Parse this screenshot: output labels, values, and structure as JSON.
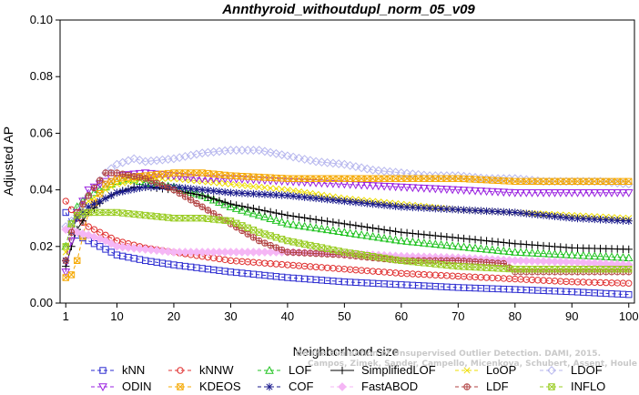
{
  "chart_data": {
    "type": "line",
    "title": "Annthyroid_withoutdupl_norm_05_v09",
    "xlabel": "Neighborhood size",
    "ylabel": "Adjusted AP",
    "xlim": [
      0,
      101
    ],
    "ylim": [
      0,
      0.1
    ],
    "xticks": [
      1,
      10,
      20,
      30,
      40,
      50,
      60,
      70,
      80,
      90,
      100
    ],
    "yticks": [
      "0.00",
      "0.02",
      "0.04",
      "0.06",
      "0.08",
      "0.10"
    ],
    "grid": false,
    "legend_position": "bottom",
    "series": [
      {
        "name": "kNN",
        "color": "#2b2bd0",
        "marker": "square",
        "dash": "4,3",
        "points": [
          [
            1,
            0.032
          ],
          [
            2,
            0.028
          ],
          [
            3,
            0.024
          ],
          [
            5,
            0.022
          ],
          [
            8,
            0.019
          ],
          [
            10,
            0.017
          ],
          [
            15,
            0.015
          ],
          [
            20,
            0.0135
          ],
          [
            30,
            0.011
          ],
          [
            40,
            0.009
          ],
          [
            50,
            0.0075
          ],
          [
            60,
            0.0065
          ],
          [
            70,
            0.0055
          ],
          [
            80,
            0.0048
          ],
          [
            90,
            0.004
          ],
          [
            100,
            0.003
          ]
        ]
      },
      {
        "name": "kNNW",
        "color": "#e03030",
        "marker": "circle",
        "dash": "4,3",
        "points": [
          [
            1,
            0.036
          ],
          [
            2,
            0.033
          ],
          [
            3,
            0.03
          ],
          [
            5,
            0.027
          ],
          [
            8,
            0.024
          ],
          [
            10,
            0.022
          ],
          [
            15,
            0.0195
          ],
          [
            20,
            0.018
          ],
          [
            30,
            0.015
          ],
          [
            40,
            0.0135
          ],
          [
            50,
            0.012
          ],
          [
            60,
            0.0105
          ],
          [
            70,
            0.0095
          ],
          [
            80,
            0.0085
          ],
          [
            90,
            0.0075
          ],
          [
            100,
            0.007
          ]
        ]
      },
      {
        "name": "LOF",
        "color": "#22c322",
        "marker": "triangle",
        "dash": "4,3",
        "points": [
          [
            1,
            0.02
          ],
          [
            2,
            0.028
          ],
          [
            3,
            0.034
          ],
          [
            5,
            0.038
          ],
          [
            8,
            0.041
          ],
          [
            10,
            0.043
          ],
          [
            12,
            0.044
          ],
          [
            15,
            0.0425
          ],
          [
            20,
            0.041
          ],
          [
            25,
            0.038
          ],
          [
            30,
            0.034
          ],
          [
            35,
            0.031
          ],
          [
            40,
            0.028
          ],
          [
            50,
            0.025
          ],
          [
            60,
            0.022
          ],
          [
            70,
            0.02
          ],
          [
            80,
            0.018
          ],
          [
            90,
            0.017
          ],
          [
            100,
            0.016
          ]
        ]
      },
      {
        "name": "SimplifiedLOF",
        "color": "#000000",
        "marker": "plus",
        "dash": "",
        "points": [
          [
            1,
            0.013
          ],
          [
            2,
            0.02
          ],
          [
            3,
            0.026
          ],
          [
            5,
            0.032
          ],
          [
            8,
            0.037
          ],
          [
            10,
            0.039
          ],
          [
            13,
            0.041
          ],
          [
            15,
            0.041
          ],
          [
            20,
            0.04
          ],
          [
            25,
            0.038
          ],
          [
            30,
            0.035
          ],
          [
            35,
            0.033
          ],
          [
            40,
            0.031
          ],
          [
            50,
            0.028
          ],
          [
            60,
            0.025
          ],
          [
            70,
            0.023
          ],
          [
            80,
            0.021
          ],
          [
            90,
            0.0195
          ],
          [
            100,
            0.019
          ]
        ]
      },
      {
        "name": "LoOP",
        "color": "#eedd00",
        "marker": "x",
        "dash": "4,3",
        "points": [
          [
            1,
            0.018
          ],
          [
            2,
            0.025
          ],
          [
            3,
            0.031
          ],
          [
            5,
            0.036
          ],
          [
            8,
            0.04
          ],
          [
            10,
            0.042
          ],
          [
            15,
            0.044
          ],
          [
            20,
            0.044
          ],
          [
            30,
            0.042
          ],
          [
            40,
            0.04
          ],
          [
            50,
            0.037
          ],
          [
            60,
            0.035
          ],
          [
            70,
            0.033
          ],
          [
            80,
            0.032
          ],
          [
            90,
            0.031
          ],
          [
            100,
            0.03
          ]
        ]
      },
      {
        "name": "LDOF",
        "color": "#b7b7ee",
        "marker": "diamond",
        "dash": "4,3",
        "points": [
          [
            1,
            0.027
          ],
          [
            3,
            0.031
          ],
          [
            5,
            0.038
          ],
          [
            8,
            0.046
          ],
          [
            10,
            0.049
          ],
          [
            13,
            0.051
          ],
          [
            15,
            0.05
          ],
          [
            20,
            0.051
          ],
          [
            25,
            0.053
          ],
          [
            30,
            0.054
          ],
          [
            35,
            0.054
          ],
          [
            40,
            0.052
          ],
          [
            45,
            0.05
          ],
          [
            50,
            0.049
          ],
          [
            55,
            0.047
          ],
          [
            60,
            0.046
          ],
          [
            65,
            0.045
          ],
          [
            70,
            0.045
          ],
          [
            75,
            0.044
          ],
          [
            80,
            0.044
          ],
          [
            85,
            0.043
          ],
          [
            90,
            0.043
          ],
          [
            95,
            0.043
          ],
          [
            100,
            0.042
          ]
        ]
      },
      {
        "name": "ODIN",
        "color": "#9a22e0",
        "marker": "triangle-down",
        "dash": "4,3",
        "points": [
          [
            1,
            0.011
          ],
          [
            2,
            0.022
          ],
          [
            3,
            0.032
          ],
          [
            5,
            0.04
          ],
          [
            8,
            0.043
          ],
          [
            10,
            0.045
          ],
          [
            15,
            0.046
          ],
          [
            20,
            0.045
          ],
          [
            25,
            0.044
          ],
          [
            30,
            0.044
          ],
          [
            40,
            0.043
          ],
          [
            50,
            0.042
          ],
          [
            60,
            0.041
          ],
          [
            70,
            0.04
          ],
          [
            80,
            0.039
          ],
          [
            90,
            0.039
          ],
          [
            100,
            0.039
          ]
        ]
      },
      {
        "name": "KDEOS",
        "color": "#f5a800",
        "marker": "square-x",
        "dash": "4,3",
        "points": [
          [
            1,
            0.009
          ],
          [
            2,
            0.01
          ],
          [
            3,
            0.015
          ],
          [
            5,
            0.032
          ],
          [
            8,
            0.042
          ],
          [
            10,
            0.044
          ],
          [
            15,
            0.045
          ],
          [
            20,
            0.046
          ],
          [
            25,
            0.046
          ],
          [
            30,
            0.045
          ],
          [
            40,
            0.044
          ],
          [
            50,
            0.044
          ],
          [
            60,
            0.044
          ],
          [
            70,
            0.044
          ],
          [
            80,
            0.043
          ],
          [
            90,
            0.043
          ],
          [
            100,
            0.043
          ]
        ]
      },
      {
        "name": "COF",
        "color": "#1a1a8c",
        "marker": "star",
        "dash": "4,3",
        "points": [
          [
            1,
            0.015
          ],
          [
            2,
            0.025
          ],
          [
            3,
            0.03
          ],
          [
            5,
            0.034
          ],
          [
            8,
            0.037
          ],
          [
            10,
            0.039
          ],
          [
            15,
            0.041
          ],
          [
            20,
            0.041
          ],
          [
            25,
            0.04
          ],
          [
            30,
            0.039
          ],
          [
            40,
            0.038
          ],
          [
            50,
            0.036
          ],
          [
            60,
            0.034
          ],
          [
            70,
            0.033
          ],
          [
            80,
            0.032
          ],
          [
            90,
            0.03
          ],
          [
            100,
            0.029
          ]
        ]
      },
      {
        "name": "FastABOD",
        "color": "#f5b6f5",
        "marker": "diamond-filled",
        "dash": "4,3",
        "points": [
          [
            1,
            0.026
          ],
          [
            2,
            0.026
          ],
          [
            3,
            0.025
          ],
          [
            5,
            0.024
          ],
          [
            8,
            0.022
          ],
          [
            10,
            0.02
          ],
          [
            15,
            0.019
          ],
          [
            20,
            0.018
          ],
          [
            30,
            0.018
          ],
          [
            40,
            0.018
          ],
          [
            50,
            0.0175
          ],
          [
            60,
            0.0165
          ],
          [
            70,
            0.016
          ],
          [
            80,
            0.015
          ],
          [
            90,
            0.0145
          ],
          [
            100,
            0.0135
          ]
        ]
      },
      {
        "name": "LDF",
        "color": "#b04040",
        "marker": "circle-plus",
        "dash": "4,3",
        "points": [
          [
            1,
            0.015
          ],
          [
            2,
            0.025
          ],
          [
            3,
            0.032
          ],
          [
            5,
            0.038
          ],
          [
            8,
            0.046
          ],
          [
            10,
            0.046
          ],
          [
            15,
            0.044
          ],
          [
            20,
            0.04
          ],
          [
            25,
            0.034
          ],
          [
            30,
            0.028
          ],
          [
            35,
            0.022
          ],
          [
            40,
            0.018
          ],
          [
            50,
            0.017
          ],
          [
            60,
            0.015
          ],
          [
            70,
            0.015
          ],
          [
            78,
            0.014
          ],
          [
            80,
            0.011
          ],
          [
            90,
            0.011
          ],
          [
            100,
            0.011
          ]
        ]
      },
      {
        "name": "INFLO",
        "color": "#99cc22",
        "marker": "square-x",
        "dash": "4,3",
        "points": [
          [
            1,
            0.02
          ],
          [
            2,
            0.028
          ],
          [
            3,
            0.031
          ],
          [
            5,
            0.032
          ],
          [
            8,
            0.032
          ],
          [
            10,
            0.032
          ],
          [
            15,
            0.031
          ],
          [
            20,
            0.03
          ],
          [
            25,
            0.03
          ],
          [
            30,
            0.029
          ],
          [
            35,
            0.025
          ],
          [
            40,
            0.022
          ],
          [
            50,
            0.018
          ],
          [
            60,
            0.015
          ],
          [
            70,
            0.013
          ],
          [
            80,
            0.012
          ],
          [
            90,
            0.012
          ],
          [
            100,
            0.012
          ]
        ]
      }
    ]
  },
  "watermark": [
    "Campos, Zimek, Sander, Campello, Micenkova, Schubert, Assent, Houle",
    "On the Evaluation of Unsupervised Outlier Detection. DAMI, 2015."
  ]
}
